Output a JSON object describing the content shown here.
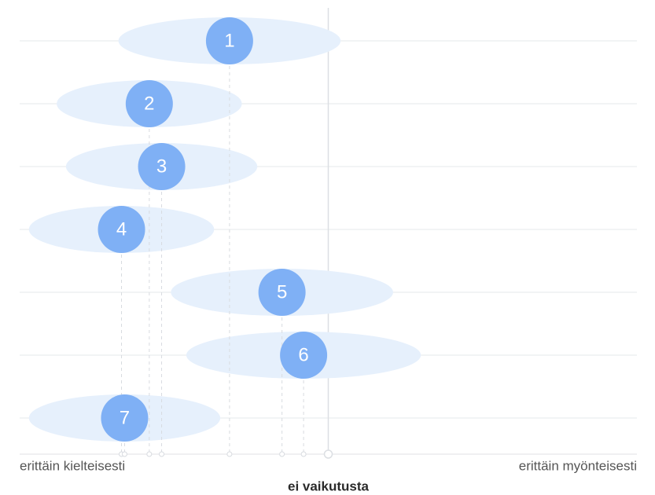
{
  "chart_data": {
    "type": "dot",
    "categories": [
      "1",
      "2",
      "3",
      "4",
      "5",
      "6",
      "7"
    ],
    "values": [
      -0.32,
      -0.58,
      -0.54,
      -0.67,
      -0.15,
      -0.08,
      -0.66
    ],
    "errors": [
      0.36,
      0.3,
      0.31,
      0.3,
      0.36,
      0.38,
      0.31
    ],
    "color": "#7fb0f5",
    "spread_color": "#e6f0fc",
    "xlim": [
      -1,
      1
    ],
    "xticks": [
      {
        "value": -1,
        "label": "erittäin kielteisesti"
      },
      {
        "value": 0,
        "label": "ei vaikutusta"
      },
      {
        "value": 1,
        "label": "erittäin myönteisesti"
      }
    ],
    "grid": true
  }
}
